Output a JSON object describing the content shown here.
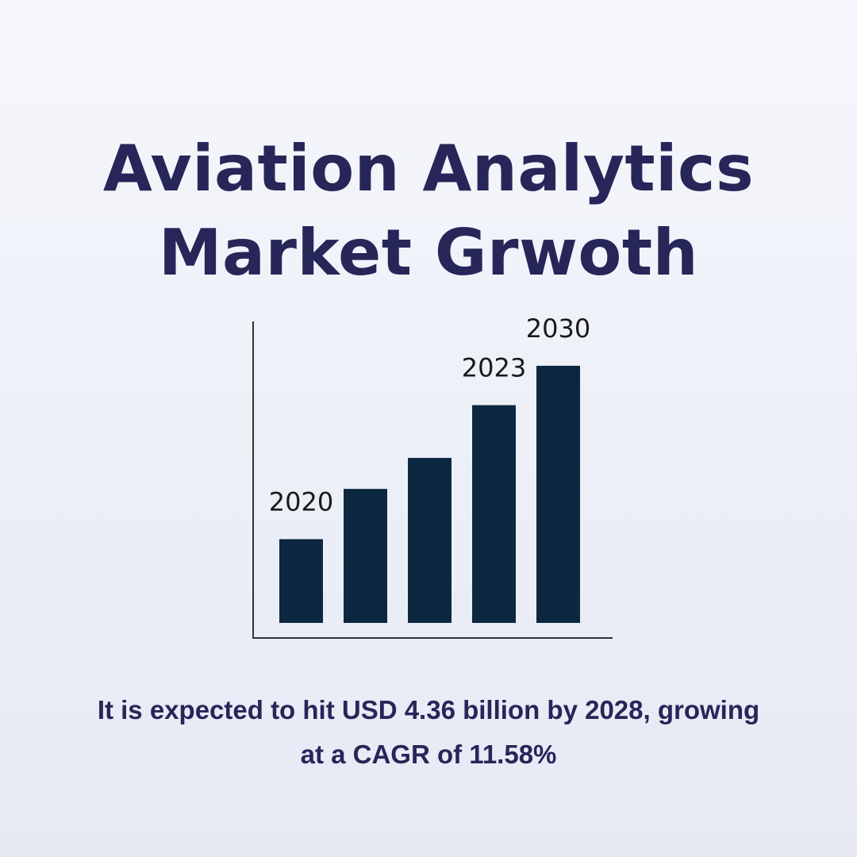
{
  "title": {
    "line1": "Aviation Analytics",
    "line2": "Market Grwoth"
  },
  "caption": {
    "line1": "It is expected to hit USD 4.36 billion by 2028, growing",
    "line2": "at a CAGR of 11.58%"
  },
  "colors": {
    "title": "#262659",
    "bar": "#0c2840",
    "axis": "#333333",
    "label": "#1a1a1a"
  },
  "chart_data": {
    "type": "bar",
    "bars": [
      {
        "label": "2020",
        "value": 1.0
      },
      {
        "label": "",
        "value": 1.6
      },
      {
        "label": "",
        "value": 1.97
      },
      {
        "label": "2023",
        "value": 2.6
      },
      {
        "label": "2030",
        "value": 3.07
      }
    ],
    "ylim": [
      0,
      3.6
    ],
    "grid": false,
    "axes": "left-and-bottom"
  }
}
